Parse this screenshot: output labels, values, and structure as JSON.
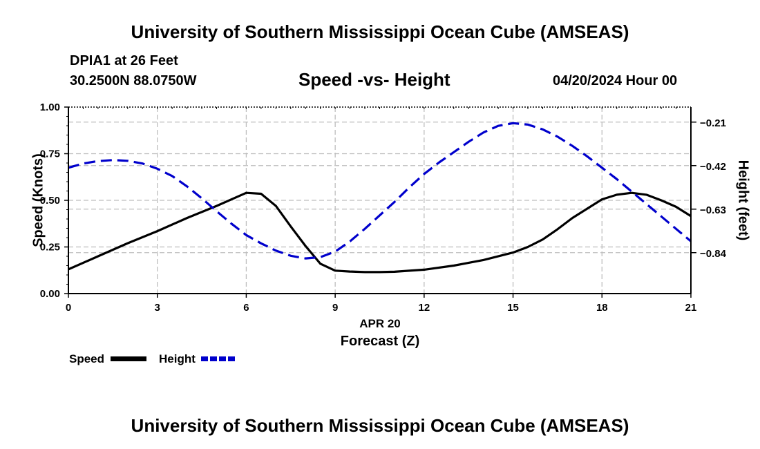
{
  "page": {
    "title_top": "University of Southern Mississippi Ocean Cube (AMSEAS)",
    "title_bottom": "University of Southern Mississippi Ocean Cube (AMSEAS)",
    "station": "DPIA1 at 26 Feet",
    "coords": "30.2500N  88.0750W",
    "chart_title": "Speed -vs- Height",
    "datetime": "04/20/2024 Hour 00",
    "date_label": "APR 20",
    "xaxis_label": "Forecast (Z)",
    "left_axis_label": "Speed (Knots)",
    "right_axis_label": "Height (feet)"
  },
  "legend": {
    "speed": "Speed",
    "height": "Height"
  },
  "colors": {
    "speed": "#000000",
    "height": "#0000cc",
    "grid": "#bdbdbd"
  },
  "chart_data": {
    "type": "line",
    "title": "Speed -vs- Height",
    "xlabel": "Forecast (Z)",
    "xlim": [
      0,
      21
    ],
    "xticks": [
      0,
      3,
      6,
      9,
      12,
      15,
      18,
      21
    ],
    "xtick_labels": [
      "0",
      "3",
      "6",
      "9",
      "12",
      "15",
      "18",
      "21"
    ],
    "ylabel_left": "Speed (Knots)",
    "ylim_left": [
      0,
      1
    ],
    "yticks_left": [
      0,
      0.25,
      0.5,
      0.75,
      1.0
    ],
    "ytick_labels_left": [
      "0.00",
      "0.25",
      "0.50",
      "0.75",
      "1.00"
    ],
    "ylabel_right": "Height (feet)",
    "ylim_right": [
      -1.0375,
      -0.1375
    ],
    "yticks_right": [
      -0.21,
      -0.42,
      -0.63,
      -0.84
    ],
    "ytick_labels_right": [
      "-0.21",
      "-0.42",
      "-0.63",
      "-0.84"
    ],
    "series": [
      {
        "name": "Speed",
        "axis": "left",
        "style": "solid",
        "x": [
          0,
          1,
          2,
          3,
          4,
          5,
          6,
          6.5,
          7,
          7.5,
          8,
          8.5,
          9,
          9.5,
          10,
          10.5,
          11,
          12,
          13,
          14,
          15,
          15.5,
          16,
          16.5,
          17,
          17.5,
          18,
          18.5,
          19,
          19.5,
          20,
          20.5,
          21
        ],
        "values": [
          0.13,
          0.2,
          0.27,
          0.335,
          0.405,
          0.47,
          0.54,
          0.535,
          0.47,
          0.36,
          0.255,
          0.16,
          0.123,
          0.118,
          0.115,
          0.115,
          0.117,
          0.128,
          0.15,
          0.18,
          0.22,
          0.25,
          0.29,
          0.345,
          0.405,
          0.455,
          0.505,
          0.53,
          0.54,
          0.53,
          0.5,
          0.465,
          0.415
        ]
      },
      {
        "name": "Height",
        "axis": "right",
        "style": "dashed",
        "x": [
          0,
          0.5,
          1,
          1.5,
          2,
          2.5,
          3,
          3.5,
          4,
          4.5,
          5,
          5.5,
          6,
          6.5,
          7,
          7.5,
          8,
          8.5,
          9,
          9.5,
          10,
          10.5,
          11,
          11.5,
          12,
          12.5,
          13,
          13.5,
          14,
          14.5,
          15,
          15.5,
          16,
          16.5,
          17,
          17.5,
          18,
          18.5,
          19,
          19.5,
          20,
          20.5,
          21
        ],
        "values": [
          -0.43,
          -0.41,
          -0.398,
          -0.393,
          -0.397,
          -0.41,
          -0.435,
          -0.47,
          -0.52,
          -0.578,
          -0.64,
          -0.7,
          -0.755,
          -0.795,
          -0.83,
          -0.855,
          -0.868,
          -0.862,
          -0.835,
          -0.785,
          -0.725,
          -0.66,
          -0.595,
          -0.525,
          -0.46,
          -0.405,
          -0.355,
          -0.305,
          -0.26,
          -0.228,
          -0.215,
          -0.222,
          -0.245,
          -0.28,
          -0.325,
          -0.375,
          -0.43,
          -0.485,
          -0.545,
          -0.605,
          -0.665,
          -0.725,
          -0.785
        ]
      }
    ]
  }
}
